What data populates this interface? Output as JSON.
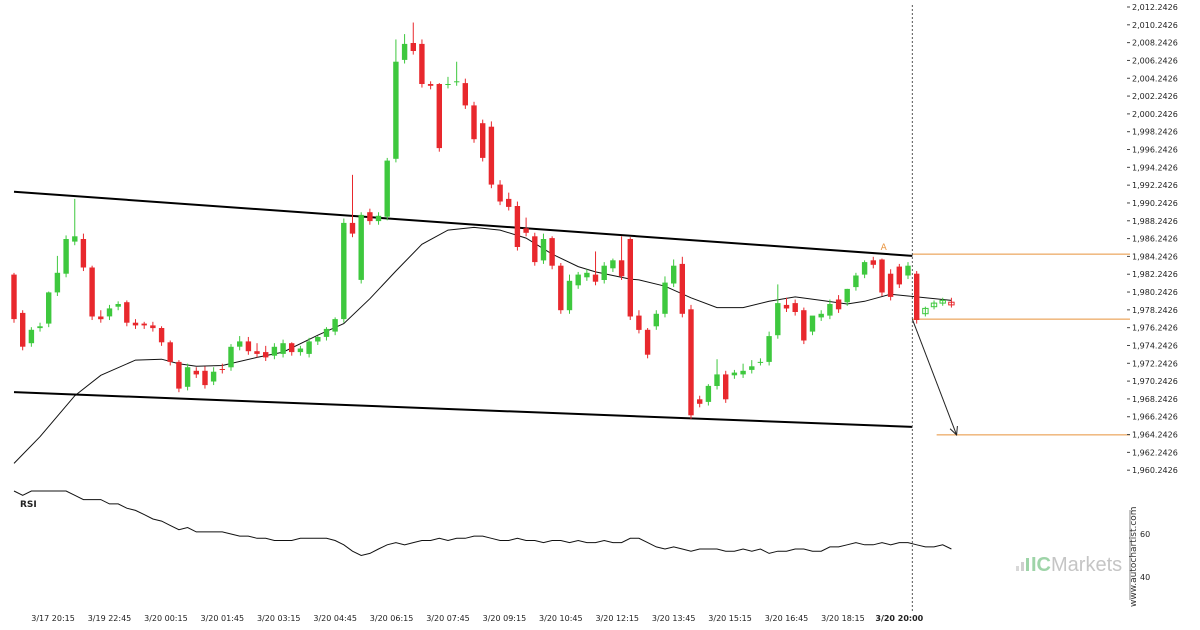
{
  "chart_data": {
    "type": "candlestick",
    "price_axis": {
      "ylim": [
        1958.2426,
        2012.2426
      ],
      "tick_labels": [
        "2,012.2426",
        "2,010.2426",
        "2,008.2426",
        "2,006.2426",
        "2,004.2426",
        "2,002.2426",
        "2,000.2426",
        "1,998.2426",
        "1,996.2426",
        "1,994.2426",
        "1,992.2426",
        "1,990.2426",
        "1,988.2426",
        "1,986.2426",
        "1,984.2426",
        "1,982.2426",
        "1,980.2426",
        "1,978.2426",
        "1,976.2426",
        "1,974.2426",
        "1,972.2426",
        "1,970.2426",
        "1,968.2426",
        "1,966.2426",
        "1,964.2426",
        "1,962.2426",
        "1,960.2426"
      ],
      "tick_values": [
        2012.2426,
        2010.2426,
        2008.2426,
        2006.2426,
        2004.2426,
        2002.2426,
        2000.2426,
        1998.2426,
        1996.2426,
        1994.2426,
        1992.2426,
        1990.2426,
        1988.2426,
        1986.2426,
        1984.2426,
        1982.2426,
        1980.2426,
        1978.2426,
        1976.2426,
        1974.2426,
        1972.2426,
        1970.2426,
        1968.2426,
        1966.2426,
        1964.2426,
        1962.2426,
        1960.2426
      ]
    },
    "x_axis": {
      "range": [
        0,
        105
      ],
      "tick_labels": [
        "3/17 20:15",
        "3/19 22:45",
        "3/20 00:15",
        "3/20 01:45",
        "3/20 03:15",
        "3/20 04:45",
        "3/20 06:15",
        "3/20 07:45",
        "3/20 09:15",
        "3/20 10:45",
        "3/20 12:15",
        "3/20 13:45",
        "3/20 15:15",
        "3/20 16:45",
        "3/20 18:15",
        "3/20 20:00"
      ],
      "tick_positions": [
        4.5,
        11,
        17.5,
        24,
        30.5,
        37,
        43.5,
        50,
        56.5,
        63,
        69.5,
        76,
        82.5,
        89,
        95.5,
        102
      ]
    },
    "ohlc": [
      {
        "x": 0,
        "o": 1982.2,
        "h": 1982.4,
        "c": 1977.2
      },
      {
        "x": 1,
        "o": 1977.9,
        "h": 1978.2,
        "c": 1974.1
      },
      {
        "x": 2,
        "o": 1974.5,
        "h": 1976.3,
        "c": 1976
      },
      {
        "x": 3,
        "o": 1976.2,
        "h": 1976.8,
        "c": 1976.4
      },
      {
        "x": 4,
        "o": 1976.7,
        "h": 1980.3,
        "c": 1980.2
      },
      {
        "x": 5,
        "o": 1980.2,
        "h": 1984.3,
        "c": 1982.4
      },
      {
        "x": 6,
        "o": 1982.3,
        "h": 1986.6,
        "c": 1986.2
      },
      {
        "x": 7,
        "o": 1985.9,
        "h": 1990.7,
        "c": 1986.5
      },
      {
        "x": 8,
        "o": 1986.2,
        "h": 1986.8,
        "c": 1983
      },
      {
        "x": 9,
        "o": 1983,
        "h": 1983.2,
        "c": 1977.5
      },
      {
        "x": 10,
        "o": 1977.5,
        "h": 1978.2,
        "c": 1977.2
      },
      {
        "x": 11,
        "o": 1977.5,
        "h": 1978.8,
        "c": 1978.4
      },
      {
        "x": 12,
        "o": 1978.6,
        "h": 1979.2,
        "c": 1978.9
      },
      {
        "x": 13,
        "o": 1979.1,
        "h": 1979.3,
        "c": 1976.8
      },
      {
        "x": 14,
        "o": 1976.8,
        "h": 1977.2,
        "c": 1976.5
      },
      {
        "x": 15,
        "o": 1976.7,
        "h": 1976.9,
        "c": 1976.5
      },
      {
        "x": 16,
        "o": 1976.5,
        "h": 1976.9,
        "c": 1976.2
      },
      {
        "x": 17,
        "o": 1976.2,
        "h": 1976.4,
        "c": 1974.6
      },
      {
        "x": 18,
        "o": 1974.6,
        "h": 1974.8,
        "c": 1972.4
      },
      {
        "x": 19,
        "o": 1972.4,
        "h": 1972.6,
        "c": 1969.4
      },
      {
        "x": 20,
        "o": 1969.6,
        "h": 1972.2,
        "c": 1971.8
      },
      {
        "x": 21,
        "o": 1971.4,
        "h": 1971.8,
        "c": 1971
      },
      {
        "x": 22,
        "o": 1971.4,
        "h": 1971.9,
        "c": 1969.8
      },
      {
        "x": 23,
        "o": 1970.2,
        "h": 1971.8,
        "c": 1971.3
      },
      {
        "x": 24,
        "o": 1971.6,
        "h": 1972.2,
        "c": 1971.5
      },
      {
        "x": 25,
        "o": 1971.8,
        "h": 1974.4,
        "c": 1974.1
      },
      {
        "x": 26,
        "o": 1974.1,
        "h": 1975.3,
        "c": 1974.7
      },
      {
        "x": 27,
        "o": 1974.7,
        "h": 1975.2,
        "c": 1973.6
      },
      {
        "x": 28,
        "o": 1973.6,
        "h": 1974.5,
        "c": 1973.3
      },
      {
        "x": 29,
        "o": 1973.5,
        "h": 1974.2,
        "c": 1972.9
      },
      {
        "x": 30,
        "o": 1973.1,
        "h": 1974.5,
        "c": 1974.1
      },
      {
        "x": 31,
        "o": 1973.3,
        "h": 1974.9,
        "c": 1974.5
      },
      {
        "x": 32,
        "o": 1974.5,
        "h": 1974.6,
        "c": 1973.5
      },
      {
        "x": 33,
        "o": 1973.5,
        "h": 1974.2,
        "c": 1973.9
      },
      {
        "x": 34,
        "o": 1973.3,
        "h": 1975.1,
        "c": 1974.7
      },
      {
        "x": 35,
        "o": 1974.7,
        "h": 1975.3,
        "c": 1975.2
      },
      {
        "x": 36,
        "o": 1975.2,
        "h": 1976.3,
        "c": 1976.1
      },
      {
        "x": 37,
        "o": 1975.8,
        "h": 1977.4,
        "c": 1977.2
      },
      {
        "x": 38,
        "o": 1977.2,
        "h": 1988.5,
        "c": 1988
      },
      {
        "x": 39,
        "o": 1988,
        "h": 1993.4,
        "c": 1986.8
      },
      {
        "x": 40,
        "o": 1981.6,
        "h": 1989.2,
        "c": 1988.9
      },
      {
        "x": 41,
        "o": 1989.2,
        "h": 1989.6,
        "c": 1988.2
      },
      {
        "x": 42,
        "o": 1988.2,
        "h": 1989.2,
        "c": 1988.8
      },
      {
        "x": 43,
        "o": 1988.7,
        "h": 1995.3,
        "c": 1995
      },
      {
        "x": 44,
        "o": 1995.2,
        "h": 2008.6,
        "c": 2006.1
      },
      {
        "x": 45,
        "o": 2006.3,
        "h": 2009.2,
        "c": 2008.1
      },
      {
        "x": 46,
        "o": 2008.2,
        "h": 2010.5,
        "c": 2007.3
      },
      {
        "x": 47,
        "o": 2008.1,
        "h": 2008.6,
        "c": 2003.6
      },
      {
        "x": 48,
        "o": 2003.6,
        "h": 2003.9,
        "c": 2003.4
      },
      {
        "x": 49,
        "o": 2003.6,
        "h": 2003.7,
        "c": 1996.4
      },
      {
        "x": 50,
        "o": 2003.5,
        "h": 2004.4,
        "c": 2003.6
      },
      {
        "x": 51,
        "o": 2003.8,
        "h": 2006.1,
        "c": 2003.9
      },
      {
        "x": 52,
        "o": 2003.7,
        "h": 2004.2,
        "c": 2001.2
      },
      {
        "x": 53,
        "o": 2001.2,
        "h": 2001.6,
        "c": 1997.4
      },
      {
        "x": 54,
        "o": 1999.2,
        "h": 1999.6,
        "c": 1995.3
      },
      {
        "x": 55,
        "o": 1998.8,
        "h": 1999.4,
        "c": 1992.3
      },
      {
        "x": 56,
        "o": 1992.3,
        "h": 1992.8,
        "c": 1990.4
      },
      {
        "x": 57,
        "o": 1990.7,
        "h": 1991.4,
        "c": 1989.8
      },
      {
        "x": 58,
        "o": 1989.9,
        "h": 1990.4,
        "c": 1985.3
      },
      {
        "x": 59,
        "o": 1987.4,
        "h": 1988.6,
        "c": 1986.9
      },
      {
        "x": 60,
        "o": 1986.5,
        "h": 1986.9,
        "c": 1983.6
      },
      {
        "x": 61,
        "o": 1983.8,
        "h": 1986.8,
        "c": 1986.2
      },
      {
        "x": 62,
        "o": 1986.3,
        "h": 1986.5,
        "c": 1983.2
      },
      {
        "x": 63,
        "o": 1983.2,
        "h": 1983.5,
        "c": 1978.2
      },
      {
        "x": 64,
        "o": 1978.2,
        "h": 1982.2,
        "c": 1981.5
      },
      {
        "x": 65,
        "o": 1981,
        "h": 1982.5,
        "c": 1982.2
      },
      {
        "x": 66,
        "o": 1981.9,
        "h": 1982.8,
        "c": 1982.4
      },
      {
        "x": 67,
        "o": 1982.2,
        "h": 1984.8,
        "c": 1981.4
      },
      {
        "x": 68,
        "o": 1981.6,
        "h": 1983.6,
        "c": 1983.2
      },
      {
        "x": 69,
        "o": 1982.9,
        "h": 1984,
        "c": 1983.8
      },
      {
        "x": 70,
        "o": 1983.8,
        "h": 1986.5,
        "c": 1982
      },
      {
        "x": 71,
        "o": 1986.2,
        "h": 1986.4,
        "c": 1977.5
      },
      {
        "x": 72,
        "o": 1977.6,
        "h": 1978.2,
        "c": 1976
      },
      {
        "x": 73,
        "o": 1976,
        "h": 1976.2,
        "c": 1973.2
      },
      {
        "x": 74,
        "o": 1976.4,
        "h": 1978.2,
        "c": 1977.8
      },
      {
        "x": 75,
        "o": 1977.8,
        "h": 1982,
        "c": 1981.3
      },
      {
        "x": 76,
        "o": 1981.2,
        "h": 1983.9,
        "c": 1983.2
      },
      {
        "x": 77,
        "o": 1983.4,
        "h": 1984.2,
        "c": 1977.8
      },
      {
        "x": 78,
        "o": 1978.3,
        "h": 1978.8,
        "c": 1966.4
      },
      {
        "x": 79,
        "o": 1968.2,
        "h": 1968.6,
        "c": 1967.7
      },
      {
        "x": 80,
        "o": 1967.9,
        "h": 1969.9,
        "c": 1969.7
      },
      {
        "x": 81,
        "o": 1969.7,
        "h": 1972.7,
        "c": 1971
      },
      {
        "x": 82,
        "o": 1971,
        "h": 1971.4,
        "c": 1968.2
      },
      {
        "x": 83,
        "o": 1970.9,
        "h": 1971.5,
        "c": 1971.2
      },
      {
        "x": 84,
        "o": 1971,
        "h": 1972.2,
        "c": 1971.4
      },
      {
        "x": 85,
        "o": 1971.5,
        "h": 1972.6,
        "c": 1971.9
      },
      {
        "x": 86,
        "o": 1972.4,
        "h": 1972.8,
        "c": 1972.4
      },
      {
        "x": 87,
        "o": 1972.4,
        "h": 1975.8,
        "c": 1975.3
      },
      {
        "x": 88,
        "o": 1975.4,
        "h": 1981.1,
        "c": 1979
      },
      {
        "x": 89,
        "o": 1978.8,
        "h": 1979.6,
        "c": 1978.4
      },
      {
        "x": 90,
        "o": 1979,
        "h": 1979.4,
        "c": 1978
      },
      {
        "x": 91,
        "o": 1978.2,
        "h": 1978.5,
        "c": 1974.8
      },
      {
        "x": 92,
        "o": 1975.8,
        "h": 1976.2,
        "c": 1977.6
      },
      {
        "x": 93,
        "o": 1977.4,
        "h": 1978.2,
        "c": 1977.8
      },
      {
        "x": 94,
        "o": 1977.6,
        "h": 1979.4,
        "c": 1978.9
      },
      {
        "x": 95,
        "o": 1979.4,
        "h": 1979.9,
        "c": 1978.3
      },
      {
        "x": 96,
        "o": 1979.1,
        "h": 1980.6,
        "c": 1980.6
      },
      {
        "x": 97,
        "o": 1980.8,
        "h": 1982.4,
        "c": 1982.1
      },
      {
        "x": 98,
        "o": 1982.2,
        "h": 1983.8,
        "c": 1983.6
      },
      {
        "x": 99,
        "o": 1983.8,
        "h": 1984.2,
        "c": 1983.3
      },
      {
        "x": 100,
        "o": 1983.9,
        "h": 1984,
        "c": 1980.2
      },
      {
        "x": 101,
        "o": 1982.3,
        "h": 1982.8,
        "c": 1979.7
      },
      {
        "x": 102,
        "o": 1983.1,
        "h": 1983.4,
        "c": 1981.1
      },
      {
        "x": 103,
        "o": 1982.1,
        "h": 1983.6,
        "c": 1983.2
      },
      {
        "x": 104,
        "o": 1982.3,
        "h": 1982.6,
        "c": 1977.1
      }
    ],
    "forming": [
      {
        "x": 105,
        "o": 1977.8,
        "h": 1978.6,
        "c": 1978.4
      },
      {
        "x": 106,
        "o": 1978.6,
        "h": 1979.3,
        "c": 1979
      },
      {
        "x": 107,
        "o": 1979,
        "h": 1979.6,
        "c": 1979.3
      },
      {
        "x": 108,
        "o": 1979.1,
        "h": 1979.6,
        "c": 1978.8
      }
    ],
    "ma": {
      "x": [
        0,
        3,
        7,
        10,
        14,
        17,
        19,
        21,
        24,
        28,
        31,
        35,
        38,
        41,
        44,
        47,
        50,
        53,
        56,
        59,
        62,
        65,
        67,
        69,
        71,
        72,
        75,
        78,
        81,
        84,
        87,
        90,
        93,
        96,
        98,
        101,
        104,
        108
      ],
      "y": [
        1961,
        1964,
        1968.6,
        1970.9,
        1972.6,
        1972.7,
        1972.2,
        1971.9,
        1972,
        1972.9,
        1973.5,
        1975.4,
        1976.7,
        1979.5,
        1982.6,
        1985.6,
        1987.2,
        1987.5,
        1987.2,
        1986.3,
        1984.5,
        1983.1,
        1982.5,
        1982.1,
        1981.7,
        1981.6,
        1980.9,
        1979.6,
        1978.5,
        1978.5,
        1979.2,
        1979.7,
        1979.3,
        1978.9,
        1979.2,
        1980,
        1979.7,
        1979.3
      ]
    },
    "channel_upper": {
      "x": [
        0,
        103.5
      ],
      "y": [
        1991.5,
        1984.3
      ]
    },
    "channel_lower": {
      "x": [
        0,
        103.5
      ],
      "y": [
        1969,
        1965.1
      ]
    },
    "resistance_level": 1984.5,
    "support_level": 1977.2,
    "target_level": 1964.2,
    "projection": {
      "from": {
        "x": 103.5,
        "y": 1977.2
      },
      "to": {
        "x": 108.6,
        "y": 1964.2
      }
    },
    "marker_label": "A",
    "current_bar_x": 103.5,
    "rsi": {
      "label": "RSI",
      "ticks": [
        60,
        40
      ],
      "x": [
        0,
        1,
        2,
        3,
        4,
        5,
        6,
        7,
        8,
        9,
        10,
        11,
        12,
        13,
        14,
        15,
        16,
        17,
        18,
        19,
        20,
        21,
        22,
        23,
        24,
        25,
        26,
        27,
        28,
        29,
        30,
        31,
        32,
        33,
        34,
        35,
        36,
        37,
        38,
        39,
        40,
        41,
        42,
        43,
        44,
        45,
        46,
        47,
        48,
        49,
        50,
        51,
        52,
        53,
        54,
        55,
        56,
        57,
        58,
        59,
        60,
        61,
        62,
        63,
        64,
        65,
        66,
        67,
        68,
        69,
        70,
        71,
        72,
        73,
        74,
        75,
        76,
        77,
        78,
        79,
        80,
        81,
        82,
        83,
        84,
        85,
        86,
        87,
        88,
        89,
        90,
        91,
        92,
        93,
        94,
        95,
        96,
        97,
        98,
        99,
        100,
        101,
        102,
        103,
        104,
        105,
        106,
        107,
        108
      ],
      "y": [
        80,
        78,
        80,
        80,
        80,
        80,
        80,
        78,
        76,
        76,
        76,
        74,
        74,
        72,
        71,
        69,
        67,
        66,
        64,
        62,
        63,
        61,
        61,
        61,
        61,
        60,
        59,
        59,
        58,
        58,
        57,
        57,
        57,
        58,
        58,
        58,
        58,
        57,
        55,
        52,
        50,
        51,
        53,
        55,
        56,
        55,
        56,
        57,
        57,
        58,
        57,
        58,
        58,
        59,
        59,
        58,
        57,
        57,
        58,
        57,
        57,
        56,
        57,
        57,
        56,
        57,
        56,
        56,
        57,
        56,
        56,
        58,
        58,
        56,
        54,
        53,
        54,
        53,
        52,
        53,
        53,
        53,
        52,
        52,
        53,
        52,
        53,
        51,
        52,
        52,
        53,
        53,
        52,
        52,
        54,
        54,
        55,
        56,
        55,
        55,
        56,
        55,
        56,
        56,
        55,
        54,
        54,
        55,
        53
      ]
    },
    "watermark": "www.autochartist.com",
    "brand_prefix": "IC",
    "brand_suffix": "Markets"
  }
}
